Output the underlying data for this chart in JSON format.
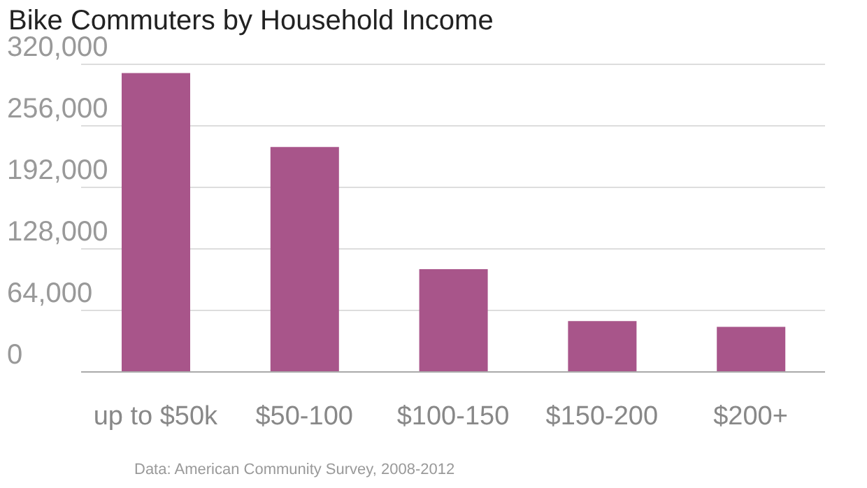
{
  "chart_data": {
    "type": "bar",
    "title": "Bike Commuters by Household Income",
    "categories": [
      "up to $50k",
      "$50-100",
      "$100-150",
      "$150-200",
      "$200+"
    ],
    "values": [
      311000,
      234000,
      107000,
      53000,
      47000
    ],
    "color": "#a8558a",
    "ylim": [
      0,
      320000
    ],
    "yticks": [
      0,
      {
        "value": 64000,
        "label": "64,000"
      },
      {
        "value": 128000,
        "label": "128,000"
      },
      {
        "value": 192000,
        "label": "192,000"
      },
      {
        "value": 256000,
        "label": "256,000"
      },
      {
        "value": 320000,
        "label": "320,000"
      }
    ],
    "grid": "y",
    "annotations": [
      "Data: American Community Survey, 2008-2012"
    ]
  }
}
